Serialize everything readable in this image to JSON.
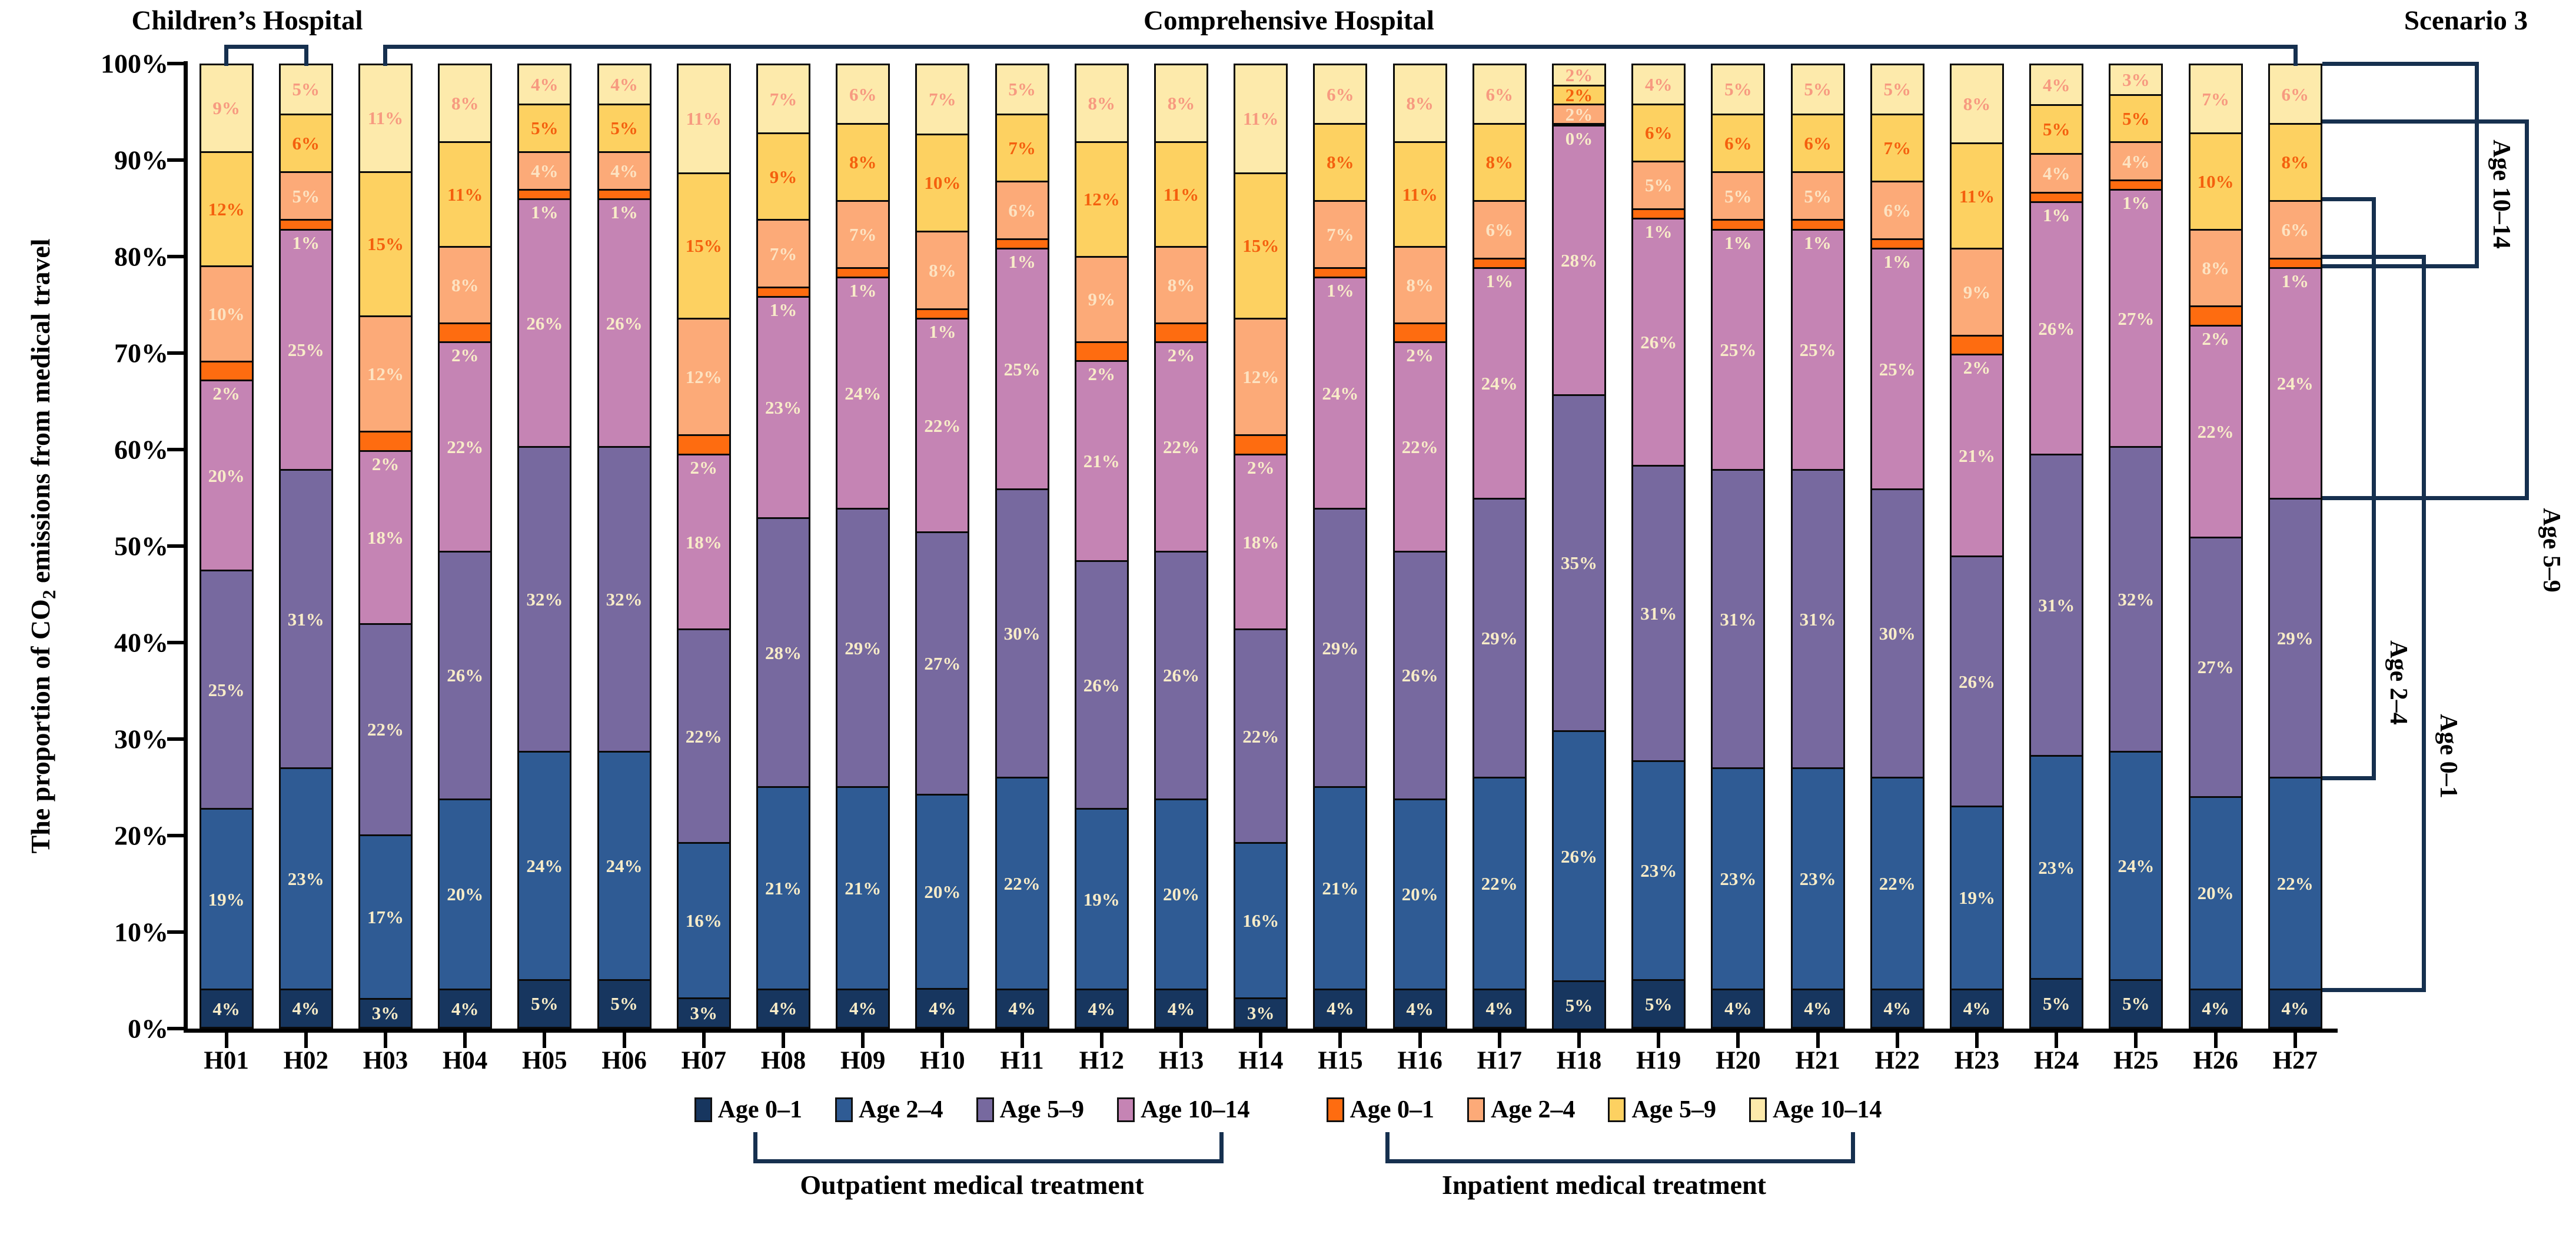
{
  "header": {
    "children_label": "Children’s Hospital",
    "comprehensive_label": "Comprehensive Hospital",
    "scenario_label": "Scenario 3"
  },
  "y_axis": {
    "title_prefix": "The proportion of CO",
    "title_sub": "2",
    "title_suffix": " emissions from medical travel",
    "ticks": [
      "0%",
      "10%",
      "20%",
      "30%",
      "40%",
      "50%",
      "60%",
      "70%",
      "80%",
      "90%",
      "100%"
    ]
  },
  "right_age_labels": [
    "Age 10–14",
    "Age 5–9",
    "Age 2–4",
    "Age 0–1"
  ],
  "legend": {
    "outpatient": {
      "bracket_label": "Outpatient medical treatment",
      "items": [
        {
          "label": "Age 0–1",
          "color": "#17365f"
        },
        {
          "label": "Age 2–4",
          "color": "#2f5b94"
        },
        {
          "label": "Age 5–9",
          "color": "#77699f"
        },
        {
          "label": "Age 10–14",
          "color": "#c584b4"
        }
      ]
    },
    "inpatient": {
      "bracket_label": "Inpatient medical treatment",
      "items": [
        {
          "label": "Age 0–1",
          "color": "#fe6c10"
        },
        {
          "label": "Age 2–4",
          "color": "#fcaa78"
        },
        {
          "label": "Age 5–9",
          "color": "#fdd161"
        },
        {
          "label": "Age 10–14",
          "color": "#fdeaab"
        }
      ]
    }
  },
  "chart_data": {
    "type": "bar",
    "stacked": true,
    "grid": false,
    "legend_position": "bottom",
    "ylabel": "The proportion of CO2 emissions from medical travel",
    "ylim": [
      0,
      100
    ],
    "categories": [
      "H01",
      "H02",
      "H03",
      "H04",
      "H05",
      "H06",
      "H07",
      "H08",
      "H09",
      "H10",
      "H11",
      "H12",
      "H13",
      "H14",
      "H15",
      "H16",
      "H17",
      "H18",
      "H19",
      "H20",
      "H21",
      "H22",
      "H23",
      "H24",
      "H25",
      "H26",
      "H27"
    ],
    "series": [
      {
        "group": "Outpatient",
        "name": "Age 0–1",
        "color": "#17365f",
        "label_color": "#f8ecc8",
        "values": [
          4,
          4,
          3,
          4,
          5,
          5,
          3,
          4,
          4,
          4,
          4,
          4,
          4,
          3,
          4,
          4,
          4,
          5,
          5,
          4,
          4,
          4,
          4,
          5,
          5,
          4,
          4
        ]
      },
      {
        "group": "Outpatient",
        "name": "Age 2–4",
        "color": "#2f5b94",
        "label_color": "#f8ecc8",
        "values": [
          19,
          23,
          17,
          20,
          24,
          24,
          16,
          21,
          21,
          20,
          22,
          19,
          20,
          16,
          21,
          20,
          22,
          26,
          23,
          23,
          23,
          22,
          19,
          23,
          24,
          20,
          22
        ]
      },
      {
        "group": "Outpatient",
        "name": "Age 5–9",
        "color": "#77699f",
        "label_color": "#f8ecc8",
        "values": [
          25,
          31,
          22,
          26,
          32,
          32,
          22,
          28,
          29,
          27,
          30,
          26,
          26,
          22,
          29,
          26,
          29,
          35,
          31,
          31,
          31,
          30,
          26,
          31,
          32,
          27,
          29
        ]
      },
      {
        "group": "Outpatient",
        "name": "Age 10–14",
        "color": "#c584b4",
        "label_color": "#f8ecc8",
        "values": [
          20,
          25,
          18,
          22,
          26,
          26,
          18,
          23,
          24,
          22,
          25,
          21,
          22,
          18,
          24,
          22,
          24,
          28,
          26,
          25,
          25,
          25,
          21,
          26,
          27,
          22,
          24
        ]
      },
      {
        "group": "Inpatient",
        "name": "Age 0–1",
        "color": "#fe6c10",
        "label_color": "#f8ecc8",
        "values": [
          2,
          1,
          2,
          2,
          1,
          1,
          2,
          1,
          1,
          1,
          1,
          2,
          2,
          2,
          1,
          2,
          1,
          0,
          1,
          1,
          1,
          1,
          2,
          1,
          1,
          2,
          1
        ]
      },
      {
        "group": "Inpatient",
        "name": "Age 2–4",
        "color": "#fcaa78",
        "label_color": "#fde3c2",
        "values": [
          10,
          5,
          12,
          8,
          4,
          4,
          12,
          7,
          7,
          8,
          6,
          9,
          8,
          12,
          7,
          8,
          6,
          2,
          5,
          5,
          5,
          6,
          9,
          4,
          4,
          8,
          6
        ]
      },
      {
        "group": "Inpatient",
        "name": "Age 5–9",
        "color": "#fdd161",
        "label_color": "#f4600e",
        "values": [
          12,
          6,
          15,
          11,
          5,
          5,
          15,
          9,
          8,
          10,
          7,
          12,
          11,
          15,
          8,
          11,
          8,
          2,
          6,
          6,
          6,
          7,
          11,
          5,
          5,
          10,
          8
        ]
      },
      {
        "group": "Inpatient",
        "name": "Age 10–14",
        "color": "#fdeaab",
        "label_color": "#f79a80",
        "values": [
          9,
          5,
          11,
          8,
          4,
          4,
          11,
          7,
          6,
          7,
          5,
          8,
          8,
          11,
          6,
          8,
          6,
          2,
          4,
          5,
          5,
          5,
          8,
          4,
          3,
          7,
          6
        ]
      }
    ]
  }
}
